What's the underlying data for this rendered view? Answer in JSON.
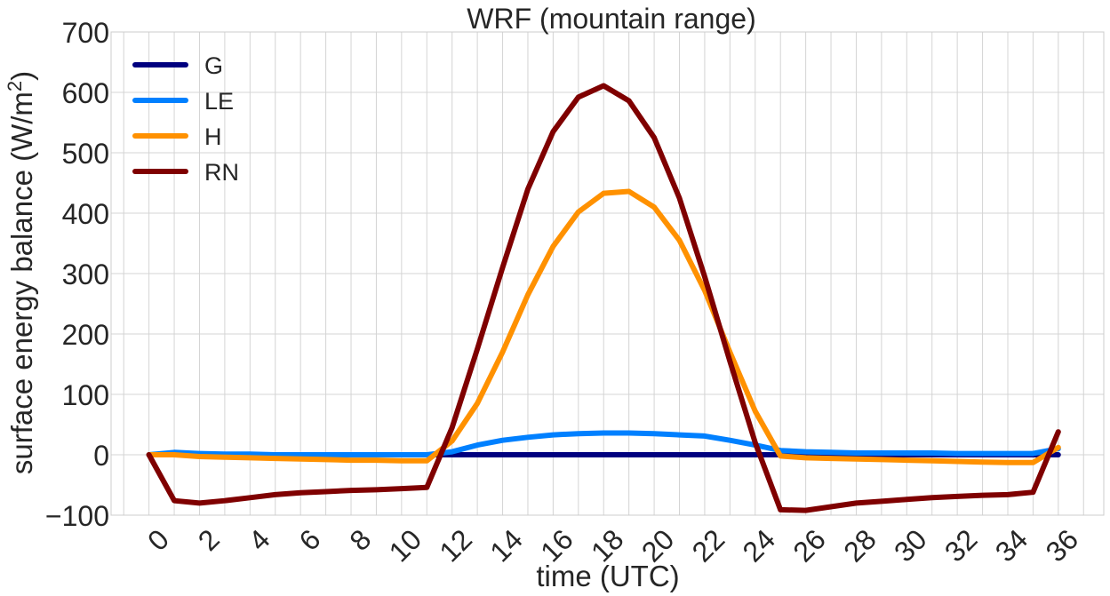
{
  "chart_data": {
    "type": "line",
    "title": "WRF (mountain range)",
    "xlabel": "time (UTC)",
    "ylabel_text": "surface energy balance (W/m",
    "ylabel_sup": "2",
    "ylabel_close": ")",
    "xlim": [
      -1.5,
      37.8
    ],
    "ylim": [
      -100,
      700
    ],
    "grid": true,
    "legend_position": "top-left",
    "x_ticks": [
      0,
      2,
      4,
      6,
      8,
      10,
      12,
      14,
      16,
      18,
      20,
      22,
      24,
      26,
      28,
      30,
      32,
      34,
      36
    ],
    "x_tick_labels": [
      "0",
      "2",
      "4",
      "6",
      "8",
      "10",
      "12",
      "14",
      "16",
      "18",
      "20",
      "22",
      "24",
      "26",
      "28",
      "30",
      "32",
      "34",
      "36"
    ],
    "y_ticks": [
      -100,
      0,
      100,
      200,
      300,
      400,
      500,
      600,
      700
    ],
    "y_tick_labels": [
      "−100",
      "0",
      "100",
      "200",
      "300",
      "400",
      "500",
      "600",
      "700"
    ],
    "x": [
      0,
      1,
      2,
      3,
      4,
      5,
      6,
      7,
      8,
      9,
      10,
      11,
      12,
      13,
      14,
      15,
      16,
      17,
      18,
      19,
      20,
      21,
      22,
      23,
      24,
      25,
      26,
      27,
      28,
      29,
      30,
      31,
      32,
      33,
      34,
      35,
      36
    ],
    "series": [
      {
        "name": "G",
        "color": "#00007f",
        "values": [
          0,
          0,
          0,
          0,
          0,
          0,
          0,
          0,
          0,
          0,
          0,
          0,
          0,
          0,
          0,
          0,
          0,
          0,
          0,
          0,
          0,
          0,
          0,
          0,
          0,
          0,
          0,
          0,
          0,
          0,
          0,
          0,
          0,
          0,
          0,
          0,
          0
        ]
      },
      {
        "name": "LE",
        "color": "#0080ff",
        "values": [
          0,
          4,
          2,
          1,
          1,
          0,
          0,
          0,
          0,
          0,
          0,
          0,
          5,
          16,
          24,
          29,
          33,
          35,
          36,
          36,
          35,
          33,
          31,
          24,
          16,
          7,
          5,
          4,
          3,
          3,
          3,
          3,
          2,
          2,
          2,
          2,
          10
        ]
      },
      {
        "name": "H",
        "color": "#ff9100",
        "values": [
          0,
          0,
          -3,
          -4,
          -5,
          -6,
          -7,
          -8,
          -9,
          -9,
          -10,
          -10,
          23,
          85,
          170,
          265,
          345,
          402,
          433,
          436,
          410,
          355,
          272,
          170,
          72,
          -2,
          -5,
          -6,
          -7,
          -8,
          -9,
          -10,
          -11,
          -12,
          -13,
          -13,
          12
        ]
      },
      {
        "name": "RN",
        "color": "#7f0000",
        "values": [
          0,
          -76,
          -80,
          -76,
          -71,
          -66,
          -63,
          -61,
          -59,
          -58,
          -56,
          -54,
          45,
          175,
          310,
          440,
          535,
          592,
          611,
          586,
          525,
          425,
          295,
          155,
          20,
          -91,
          -92,
          -86,
          -80,
          -77,
          -74,
          -71,
          -69,
          -67,
          -66,
          -62,
          38
        ]
      }
    ]
  }
}
